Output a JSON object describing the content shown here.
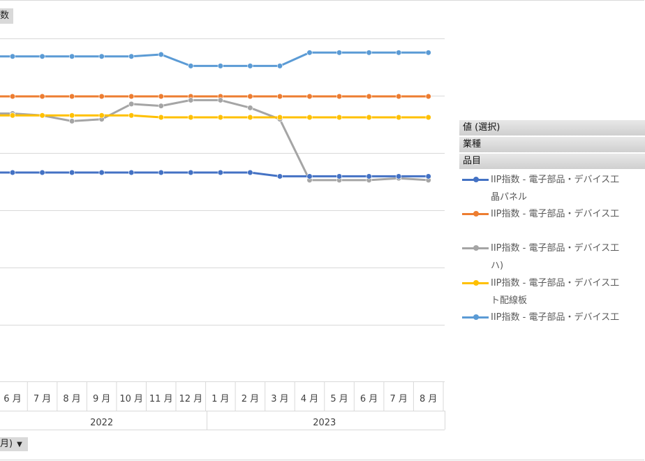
{
  "value_chip": "数",
  "axis_chip": {
    "label": "月)",
    "arrow": "▼"
  },
  "legend": {
    "headers": [
      "値 (選択)",
      "業種",
      "品目"
    ],
    "items": [
      {
        "line1": "IIP指数 - 電子部品・デバイス工",
        "line2": "晶パネル",
        "color": "#4472c4"
      },
      {
        "line1": "IIP指数 - 電子部品・デバイス工",
        "line2": "",
        "color": "#ed7d31"
      },
      {
        "line1": "IIP指数 - 電子部品・デバイス工",
        "line2": "ハ)",
        "color": "#a5a5a5"
      },
      {
        "line1": "IIP指数 - 電子部品・デバイス工",
        "line2": "ト配線板",
        "color": "#ffc000"
      },
      {
        "line1": "IIP指数 - 電子部品・デバイス工",
        "line2": "",
        "color": "#5b9bd5"
      }
    ]
  },
  "chart_data": {
    "type": "line",
    "categories": [
      "6 月",
      "7 月",
      "8 月",
      "9 月",
      "10 月",
      "11 月",
      "12 月",
      "1 月",
      "2 月",
      "3 月",
      "4 月",
      "5 月",
      "6 月",
      "7 月",
      "8 月"
    ],
    "years": [
      {
        "label": "2022",
        "start": 0,
        "end": 6
      },
      {
        "label": "2023",
        "start": 7,
        "end": 14
      }
    ],
    "grid": true,
    "legend_position": "right",
    "series": [
      {
        "color": "#5b9bd5",
        "values": [
          110.5,
          110.5,
          110.5,
          110.5,
          110.5,
          111,
          108,
          108,
          108,
          108,
          111.5,
          111.5,
          111.5,
          111.5,
          111.5
        ]
      },
      {
        "color": "#ed7d31",
        "values": [
          100,
          100,
          100,
          100,
          100,
          100,
          100,
          100,
          100,
          100,
          100,
          100,
          100,
          100,
          100
        ]
      },
      {
        "color": "#a5a5a5",
        "values": [
          95.5,
          95,
          93.5,
          94,
          98,
          97.5,
          99,
          99,
          97,
          94,
          78,
          78,
          78,
          78.5,
          78
        ]
      },
      {
        "color": "#ffc000",
        "values": [
          95,
          95,
          95,
          95,
          95,
          94.5,
          94.5,
          94.5,
          94.5,
          94.5,
          94.5,
          94.5,
          94.5,
          94.5,
          94.5
        ]
      },
      {
        "color": "#4472c4",
        "values": [
          80,
          80,
          80,
          80,
          80,
          80,
          80,
          80,
          80,
          79,
          79,
          79,
          79,
          79,
          79
        ]
      }
    ]
  }
}
